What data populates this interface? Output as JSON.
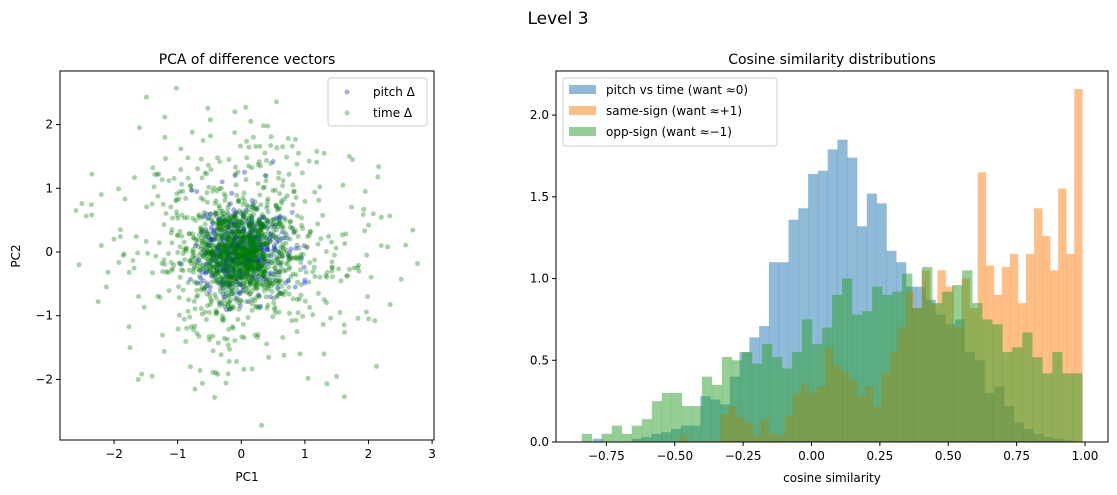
{
  "figure": {
    "suptitle": "Level 3"
  },
  "chart_data": [
    {
      "type": "scatter",
      "title": "PCA of difference vectors",
      "xlabel": "PC1",
      "ylabel": "PC2",
      "xlim": [
        -2.85,
        3.03
      ],
      "ylim": [
        -2.95,
        2.84
      ],
      "xticks": [
        -2,
        -1,
        0,
        1,
        2,
        3
      ],
      "xtick_labels": [
        "−2",
        "−1",
        "0",
        "1",
        "2",
        "3"
      ],
      "yticks": [
        -2,
        -1,
        0,
        1,
        2
      ],
      "ytick_labels": [
        "−2",
        "−1",
        "0",
        "1",
        "2"
      ],
      "grid": false,
      "legend_position": "top-right",
      "series": [
        {
          "name": "pitch Δ",
          "color": "#0000ff",
          "alpha": 0.35,
          "generated_cloud": {
            "count": 420,
            "mean": [
              0.0,
              0.0
            ],
            "std": [
              0.32,
              0.32
            ],
            "seed": 7
          },
          "points": [
            [
              -0.7,
              0.95
            ],
            [
              -0.78,
              0.97
            ],
            [
              0.05,
              1.25
            ],
            [
              -0.1,
              1.2
            ],
            [
              0.5,
              1.42
            ],
            [
              -0.3,
              1.1
            ],
            [
              0.38,
              1.2
            ],
            [
              0.8,
              0.62
            ],
            [
              -0.6,
              0.55
            ],
            [
              -0.55,
              -0.2
            ],
            [
              0.95,
              -0.1
            ],
            [
              0.85,
              -0.55
            ],
            [
              -0.5,
              -0.62
            ],
            [
              0.3,
              -0.85
            ],
            [
              -0.25,
              -0.7
            ],
            [
              0.12,
              -0.78
            ],
            [
              0.6,
              -0.65
            ],
            [
              -0.72,
              0.1
            ],
            [
              0.72,
              0.22
            ],
            [
              -0.15,
              0.92
            ]
          ]
        },
        {
          "name": "time Δ",
          "color": "#008000",
          "alpha": 0.35,
          "generated_cloud": {
            "count": 1500,
            "mean": [
              0.0,
              0.0
            ],
            "std": [
              0.62,
              0.62
            ],
            "seed": 11
          },
          "points": [
            [
              -1.02,
              2.57
            ],
            [
              -0.1,
              2.2
            ],
            [
              0.07,
              2.27
            ],
            [
              0.15,
              2.05
            ],
            [
              0.35,
              1.98
            ],
            [
              -1.6,
              1.95
            ],
            [
              -2.35,
              1.22
            ],
            [
              -2.6,
              0.65
            ],
            [
              -2.2,
              0.9
            ],
            [
              -2.55,
              -0.2
            ],
            [
              -2.35,
              0.58
            ],
            [
              -2.2,
              0.1
            ],
            [
              -2.12,
              -0.55
            ],
            [
              -2.25,
              -0.78
            ],
            [
              -1.62,
              -2.0
            ],
            [
              -1.4,
              -1.95
            ],
            [
              -0.42,
              -2.28
            ],
            [
              0.32,
              -2.72
            ],
            [
              1.05,
              -1.98
            ],
            [
              1.5,
              -1.95
            ],
            [
              2.1,
              -1.08
            ],
            [
              2.3,
              0.08
            ],
            [
              2.0,
              0.42
            ],
            [
              2.2,
              0.1
            ],
            [
              2.77,
              -0.18
            ],
            [
              1.7,
              1.5
            ],
            [
              1.75,
              1.45
            ],
            [
              1.95,
              0.95
            ],
            [
              1.55,
              -0.95
            ],
            [
              2.0,
              -1.05
            ],
            [
              -1.75,
              -1.5
            ],
            [
              -1.2,
              1.8
            ],
            [
              0.65,
              1.65
            ],
            [
              0.9,
              1.55
            ],
            [
              1.3,
              -1.6
            ],
            [
              -0.8,
              -1.8
            ],
            [
              1.6,
              1.05
            ],
            [
              -1.9,
              0.35
            ],
            [
              1.85,
              -0.3
            ],
            [
              -0.6,
              1.75
            ]
          ]
        }
      ]
    },
    {
      "type": "bar",
      "subtype": "histogram",
      "title": "Cosine similarity distributions",
      "xlabel": "cosine similarity",
      "ylabel": "",
      "xlim": [
        -0.934,
        1.084
      ],
      "ylim": [
        0,
        2.27
      ],
      "xticks": [
        -0.75,
        -0.5,
        -0.25,
        0.0,
        0.25,
        0.5,
        0.75,
        1.0
      ],
      "xtick_labels": [
        "−0.75",
        "−0.50",
        "−0.25",
        "0.00",
        "0.25",
        "0.50",
        "0.75",
        "1.00"
      ],
      "yticks": [
        0.0,
        0.5,
        1.0,
        1.5,
        2.0
      ],
      "ytick_labels": [
        "0.0",
        "0.5",
        "1.0",
        "1.5",
        "2.0"
      ],
      "grid": false,
      "legend_position": "top-left",
      "series": [
        {
          "name": "pitch vs time (want ≈0)",
          "color": "#1f77b4",
          "alpha": 0.5,
          "bin_start": -0.8,
          "bin_end": 0.99,
          "values": [
            0.02,
            0.0,
            0.0,
            0.0,
            0.02,
            0.03,
            0.05,
            0.06,
            0.08,
            0.1,
            0.1,
            0.28,
            0.26,
            0.23,
            0.4,
            0.55,
            0.64,
            0.71,
            1.1,
            1.1,
            1.36,
            1.43,
            1.64,
            1.66,
            1.79,
            1.85,
            1.74,
            1.32,
            1.52,
            1.46,
            1.17,
            1.1,
            0.95,
            0.95,
            0.87,
            0.78,
            0.72,
            0.75,
            0.55,
            0.5,
            0.3,
            0.34,
            0.22,
            0.12,
            0.08,
            0.05,
            0.03,
            0.02,
            0.01,
            0.0
          ]
        },
        {
          "name": "same-sign (want ≈+1)",
          "color": "#ff7f0e",
          "alpha": 0.5,
          "bin_start": -0.48,
          "bin_end": 0.99,
          "values": [
            0.04,
            0.0,
            0.0,
            0.0,
            0.0,
            0.17,
            0.22,
            0.15,
            0.12,
            0.04,
            0.14,
            0.05,
            0.04,
            0.16,
            0.3,
            0.35,
            0.3,
            0.34,
            0.58,
            0.47,
            0.43,
            0.38,
            0.28,
            0.34,
            0.22,
            0.42,
            0.55,
            0.7,
            0.92,
            0.82,
            1.05,
            0.84,
            1.05,
            0.95,
            0.7,
            1.0,
            0.82,
            1.65,
            1.08,
            0.9,
            1.07,
            1.15,
            0.85,
            1.15,
            1.43,
            1.26,
            1.05,
            1.55,
            1.15,
            2.16
          ]
        },
        {
          "name": "opp-sign (want ≈−1)",
          "color": "#2ca02c",
          "alpha": 0.5,
          "bin_start": -0.84,
          "bin_end": 0.99,
          "values": [
            0.05,
            0.0,
            0.05,
            0.1,
            0.05,
            0.1,
            0.14,
            0.25,
            0.3,
            0.3,
            0.22,
            0.22,
            0.4,
            0.35,
            0.52,
            0.5,
            0.55,
            0.48,
            0.6,
            0.52,
            0.45,
            0.55,
            0.75,
            0.6,
            0.7,
            0.9,
            1.0,
            0.78,
            0.8,
            0.95,
            0.9,
            0.92,
            1.03,
            0.82,
            1.07,
            0.85,
            0.92,
            0.96,
            1.05,
            0.85,
            0.75,
            0.72,
            0.55,
            0.58,
            0.67,
            0.52,
            0.42,
            0.55,
            0.42,
            0.42
          ]
        }
      ]
    }
  ]
}
